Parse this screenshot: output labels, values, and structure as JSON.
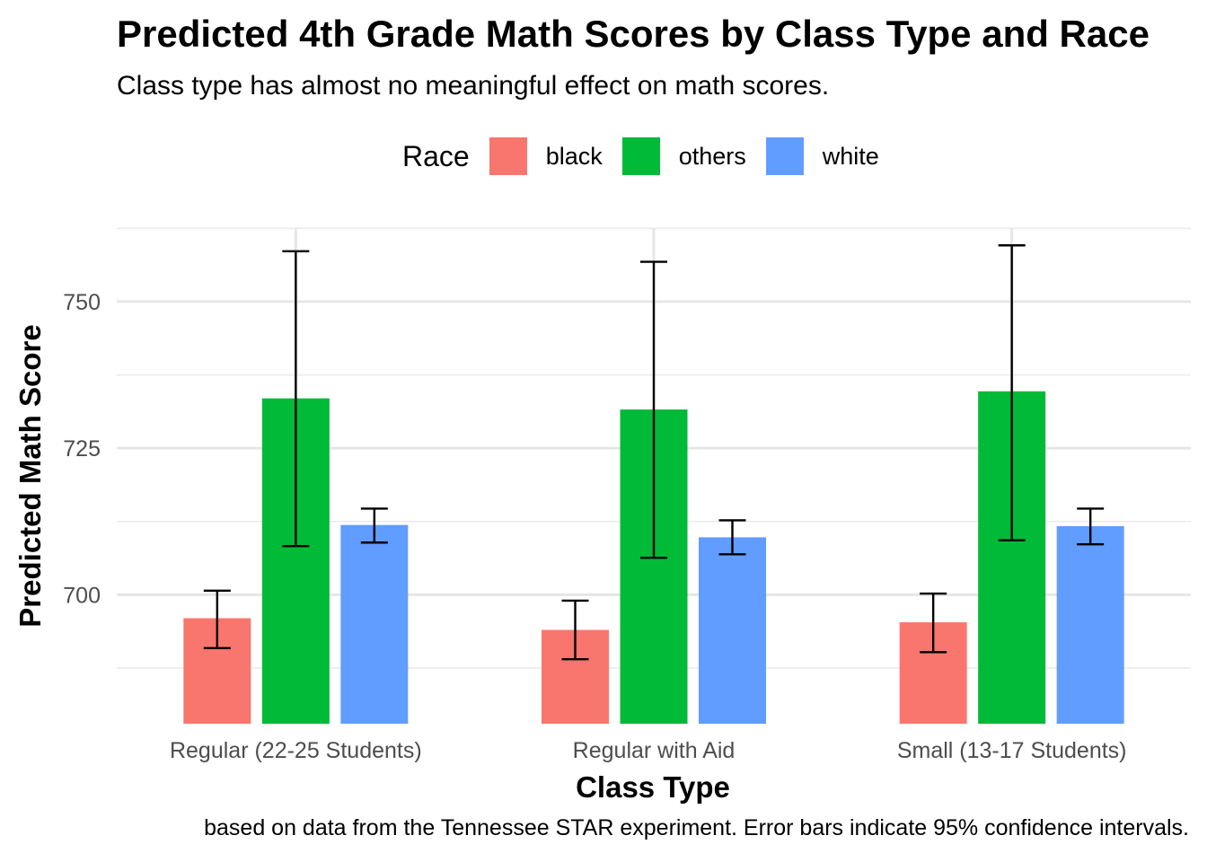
{
  "chart_data": {
    "type": "bar",
    "title": "Predicted 4th Grade Math Scores by Class Type and Race",
    "subtitle": "Class type has almost no meaningful effect on math scores.",
    "caption": "based on data from the Tennessee STAR experiment. Error bars indicate 95% confidence intervals.",
    "xlabel": "Class Type",
    "ylabel": "Predicted Math Score",
    "categories": [
      "Regular (22-25 Students)",
      "Regular with Aid",
      "Small (13-17 Students)"
    ],
    "ylim": [
      678,
      765
    ],
    "yticks": [
      700,
      725,
      750
    ],
    "grid": true,
    "legend": {
      "title": "Race",
      "position": "top"
    },
    "series": [
      {
        "name": "black",
        "color": "#F8766D",
        "values": [
          696,
          694,
          695.3
        ],
        "ci_low": [
          690.9,
          689,
          690.2
        ],
        "ci_high": [
          700.7,
          699,
          700.2
        ]
      },
      {
        "name": "others",
        "color": "#00BA38",
        "values": [
          733.5,
          731.6,
          734.7
        ],
        "ci_low": [
          708.3,
          706.3,
          709.3
        ],
        "ci_high": [
          758.6,
          756.8,
          759.6
        ]
      },
      {
        "name": "white",
        "color": "#619CFF",
        "values": [
          711.9,
          709.8,
          711.7
        ],
        "ci_low": [
          708.9,
          706.9,
          708.6
        ],
        "ci_high": [
          714.7,
          712.7,
          714.7
        ]
      }
    ]
  }
}
